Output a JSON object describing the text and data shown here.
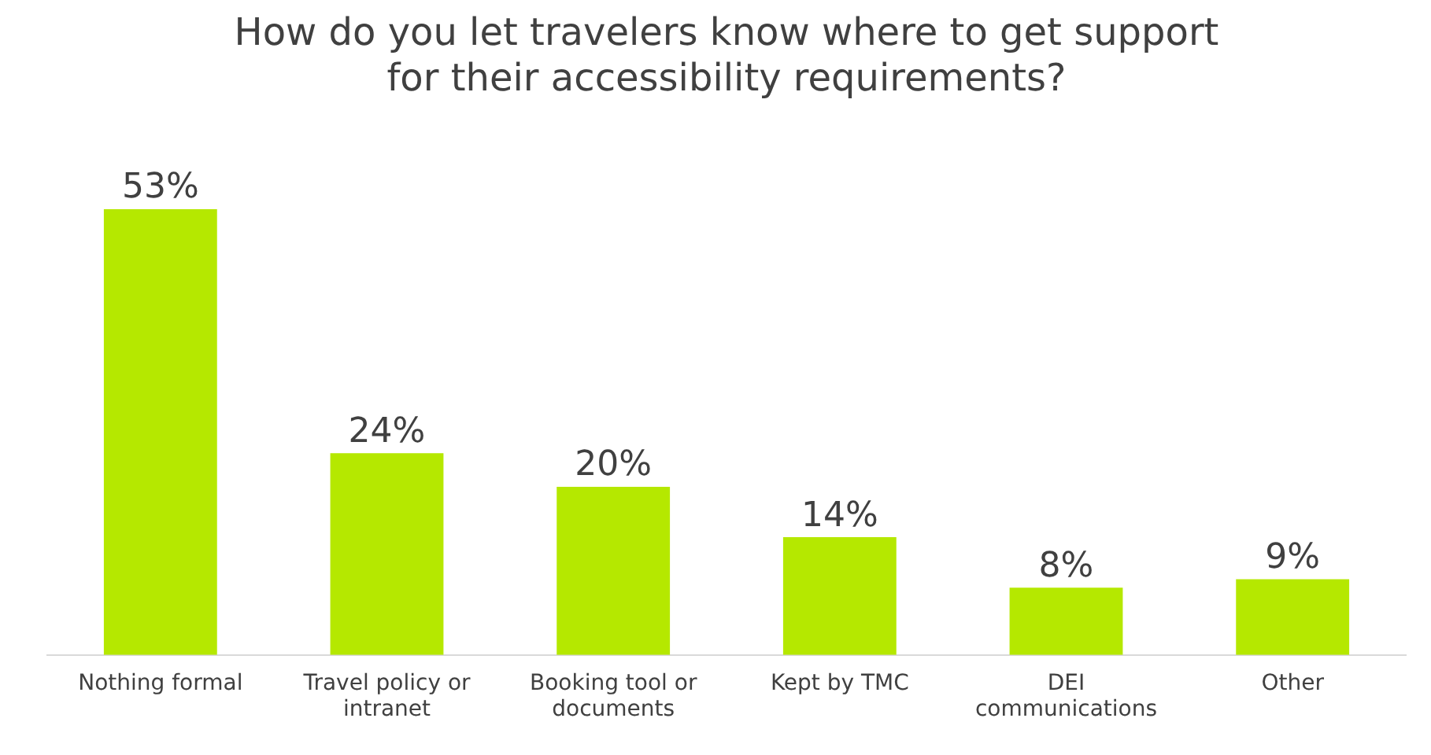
{
  "chart_data": {
    "type": "bar",
    "title": "How do you let travelers know where to get support for their accessibility requirements?",
    "categories": [
      "Nothing formal",
      "Travel policy or intranet",
      "Booking tool or documents",
      "Kept by TMC",
      "DEI communications",
      "Other"
    ],
    "values": [
      53,
      24,
      20,
      14,
      8,
      9
    ],
    "value_labels": [
      "53%",
      "24%",
      "20%",
      "14%",
      "8%",
      "9%"
    ],
    "color": "#b5e800",
    "grid": false,
    "legend": false
  }
}
